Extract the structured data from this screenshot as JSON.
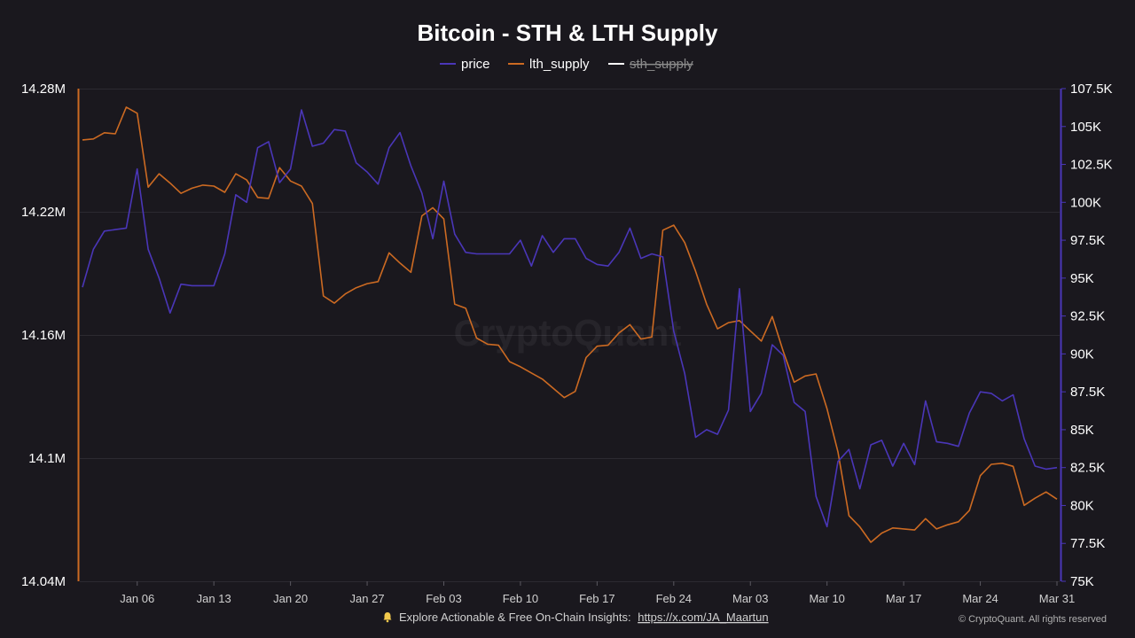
{
  "chart_data": {
    "type": "line",
    "title": "Bitcoin - STH & LTH Supply",
    "legend": [
      {
        "name": "price",
        "color": "#4a36b8",
        "visible": true
      },
      {
        "name": "lth_supply",
        "color": "#cc6a22",
        "visible": true
      },
      {
        "name": "sth_supply",
        "color": "#ffffff",
        "visible": false
      }
    ],
    "legend_position": "top-center",
    "grid": true,
    "x_range": [
      "2025-01-01",
      "2025-03-31"
    ],
    "x_ticks": [
      "Jan 06",
      "Jan 13",
      "Jan 20",
      "Jan 27",
      "Feb 03",
      "Feb 10",
      "Feb 17",
      "Feb 24",
      "Mar 03",
      "Mar 10",
      "Mar 17",
      "Mar 24",
      "Mar 31"
    ],
    "x_tick_dates": [
      "2025-01-06",
      "2025-01-13",
      "2025-01-20",
      "2025-01-27",
      "2025-02-03",
      "2025-02-10",
      "2025-02-17",
      "2025-02-24",
      "2025-03-03",
      "2025-03-10",
      "2025-03-17",
      "2025-03-24",
      "2025-03-31"
    ],
    "y_left": {
      "series": "lth_supply",
      "ylim": [
        14040000,
        14280000
      ],
      "ticks": [
        14040000,
        14100000,
        14160000,
        14220000,
        14280000
      ],
      "tick_labels": [
        "14.04M",
        "14.1M",
        "14.16M",
        "14.22M",
        "14.28M"
      ]
    },
    "y_right": {
      "series": "price",
      "ylim": [
        75000,
        107500
      ],
      "ticks": [
        75000,
        77500,
        80000,
        82500,
        85000,
        87500,
        90000,
        92500,
        95000,
        97500,
        100000,
        102500,
        105000,
        107500
      ],
      "tick_labels": [
        "75K",
        "77.5K",
        "80K",
        "82.5K",
        "85K",
        "87.5K",
        "90K",
        "92.5K",
        "95K",
        "97.5K",
        "100K",
        "102.5K",
        "105K",
        "107.5K"
      ]
    },
    "series": [
      {
        "name": "price",
        "axis": "right",
        "points": [
          [
            "2025-01-01",
            94400
          ],
          [
            "2025-01-02",
            96900
          ],
          [
            "2025-01-03",
            98100
          ],
          [
            "2025-01-04",
            98200
          ],
          [
            "2025-01-05",
            98300
          ],
          [
            "2025-01-06",
            102200
          ],
          [
            "2025-01-07",
            96900
          ],
          [
            "2025-01-08",
            95000
          ],
          [
            "2025-01-09",
            92700
          ],
          [
            "2025-01-10",
            94600
          ],
          [
            "2025-01-11",
            94500
          ],
          [
            "2025-01-12",
            94500
          ],
          [
            "2025-01-13",
            94500
          ],
          [
            "2025-01-14",
            96600
          ],
          [
            "2025-01-15",
            100500
          ],
          [
            "2025-01-16",
            100000
          ],
          [
            "2025-01-17",
            103600
          ],
          [
            "2025-01-18",
            104000
          ],
          [
            "2025-01-19",
            101300
          ],
          [
            "2025-01-20",
            102200
          ],
          [
            "2025-01-21",
            106100
          ],
          [
            "2025-01-22",
            103700
          ],
          [
            "2025-01-23",
            103900
          ],
          [
            "2025-01-24",
            104800
          ],
          [
            "2025-01-25",
            104700
          ],
          [
            "2025-01-26",
            102600
          ],
          [
            "2025-01-27",
            102000
          ],
          [
            "2025-01-28",
            101200
          ],
          [
            "2025-01-29",
            103600
          ],
          [
            "2025-01-30",
            104600
          ],
          [
            "2025-01-31",
            102400
          ],
          [
            "2025-02-01",
            100600
          ],
          [
            "2025-02-02",
            97600
          ],
          [
            "2025-02-03",
            101400
          ],
          [
            "2025-02-04",
            97900
          ],
          [
            "2025-02-05",
            96700
          ],
          [
            "2025-02-06",
            96600
          ],
          [
            "2025-02-07",
            96600
          ],
          [
            "2025-02-08",
            96600
          ],
          [
            "2025-02-09",
            96600
          ],
          [
            "2025-02-10",
            97500
          ],
          [
            "2025-02-11",
            95800
          ],
          [
            "2025-02-12",
            97800
          ],
          [
            "2025-02-13",
            96700
          ],
          [
            "2025-02-14",
            97600
          ],
          [
            "2025-02-15",
            97600
          ],
          [
            "2025-02-16",
            96300
          ],
          [
            "2025-02-17",
            95900
          ],
          [
            "2025-02-18",
            95800
          ],
          [
            "2025-02-19",
            96700
          ],
          [
            "2025-02-20",
            98300
          ],
          [
            "2025-02-21",
            96300
          ],
          [
            "2025-02-22",
            96600
          ],
          [
            "2025-02-23",
            96400
          ],
          [
            "2025-02-24",
            91500
          ],
          [
            "2025-02-25",
            88700
          ],
          [
            "2025-02-26",
            84500
          ],
          [
            "2025-02-27",
            85000
          ],
          [
            "2025-02-28",
            84700
          ],
          [
            "2025-03-01",
            86300
          ],
          [
            "2025-03-02",
            94300
          ],
          [
            "2025-03-03",
            86200
          ],
          [
            "2025-03-04",
            87400
          ],
          [
            "2025-03-05",
            90600
          ],
          [
            "2025-03-06",
            89900
          ],
          [
            "2025-03-07",
            86800
          ],
          [
            "2025-03-08",
            86200
          ],
          [
            "2025-03-09",
            80600
          ],
          [
            "2025-03-10",
            78600
          ],
          [
            "2025-03-11",
            82900
          ],
          [
            "2025-03-12",
            83700
          ],
          [
            "2025-03-13",
            81100
          ],
          [
            "2025-03-14",
            84000
          ],
          [
            "2025-03-15",
            84300
          ],
          [
            "2025-03-16",
            82600
          ],
          [
            "2025-03-17",
            84100
          ],
          [
            "2025-03-18",
            82700
          ],
          [
            "2025-03-19",
            86900
          ],
          [
            "2025-03-20",
            84200
          ],
          [
            "2025-03-21",
            84100
          ],
          [
            "2025-03-22",
            83900
          ],
          [
            "2025-03-23",
            86100
          ],
          [
            "2025-03-24",
            87500
          ],
          [
            "2025-03-25",
            87400
          ],
          [
            "2025-03-26",
            86900
          ],
          [
            "2025-03-27",
            87300
          ],
          [
            "2025-03-28",
            84400
          ],
          [
            "2025-03-29",
            82600
          ],
          [
            "2025-03-30",
            82400
          ],
          [
            "2025-03-31",
            82500
          ]
        ]
      },
      {
        "name": "lth_supply",
        "axis": "left",
        "points": [
          [
            "2025-01-01",
            14255000
          ],
          [
            "2025-01-02",
            14255500
          ],
          [
            "2025-01-03",
            14258500
          ],
          [
            "2025-01-04",
            14258000
          ],
          [
            "2025-01-05",
            14271000
          ],
          [
            "2025-01-06",
            14268000
          ],
          [
            "2025-01-07",
            14232000
          ],
          [
            "2025-01-08",
            14238500
          ],
          [
            "2025-01-09",
            14234000
          ],
          [
            "2025-01-10",
            14229000
          ],
          [
            "2025-01-11",
            14231500
          ],
          [
            "2025-01-12",
            14233000
          ],
          [
            "2025-01-13",
            14232500
          ],
          [
            "2025-01-14",
            14229500
          ],
          [
            "2025-01-15",
            14238500
          ],
          [
            "2025-01-16",
            14235500
          ],
          [
            "2025-01-17",
            14227000
          ],
          [
            "2025-01-18",
            14226500
          ],
          [
            "2025-01-19",
            14241500
          ],
          [
            "2025-01-20",
            14235000
          ],
          [
            "2025-01-21",
            14232500
          ],
          [
            "2025-01-22",
            14224000
          ],
          [
            "2025-01-23",
            14179000
          ],
          [
            "2025-01-24",
            14175500
          ],
          [
            "2025-01-25",
            14180000
          ],
          [
            "2025-01-26",
            14183000
          ],
          [
            "2025-01-27",
            14185000
          ],
          [
            "2025-01-28",
            14186000
          ],
          [
            "2025-01-29",
            14200000
          ],
          [
            "2025-01-30",
            14195000
          ],
          [
            "2025-01-31",
            14190500
          ],
          [
            "2025-02-01",
            14218000
          ],
          [
            "2025-02-02",
            14222000
          ],
          [
            "2025-02-03",
            14216500
          ],
          [
            "2025-02-04",
            14175000
          ],
          [
            "2025-02-05",
            14173000
          ],
          [
            "2025-02-06",
            14158500
          ],
          [
            "2025-02-07",
            14155500
          ],
          [
            "2025-02-08",
            14155000
          ],
          [
            "2025-02-09",
            14147000
          ],
          [
            "2025-02-10",
            14144500
          ],
          [
            "2025-02-11",
            14141500
          ],
          [
            "2025-02-12",
            14138500
          ],
          [
            "2025-02-13",
            14134000
          ],
          [
            "2025-02-14",
            14129500
          ],
          [
            "2025-02-15",
            14132500
          ],
          [
            "2025-02-16",
            14149000
          ],
          [
            "2025-02-17",
            14154500
          ],
          [
            "2025-02-18",
            14155000
          ],
          [
            "2025-02-19",
            14161000
          ],
          [
            "2025-02-20",
            14165000
          ],
          [
            "2025-02-21",
            14158000
          ],
          [
            "2025-02-22",
            14159000
          ],
          [
            "2025-02-23",
            14211000
          ],
          [
            "2025-02-24",
            14213500
          ],
          [
            "2025-02-25",
            14205000
          ],
          [
            "2025-02-26",
            14191000
          ],
          [
            "2025-02-27",
            14175000
          ],
          [
            "2025-02-28",
            14163000
          ],
          [
            "2025-03-01",
            14166000
          ],
          [
            "2025-03-02",
            14167000
          ],
          [
            "2025-03-03",
            14162000
          ],
          [
            "2025-03-04",
            14157000
          ],
          [
            "2025-03-05",
            14169000
          ],
          [
            "2025-03-06",
            14152000
          ],
          [
            "2025-03-07",
            14137000
          ],
          [
            "2025-03-08",
            14140000
          ],
          [
            "2025-03-09",
            14141000
          ],
          [
            "2025-03-10",
            14124000
          ],
          [
            "2025-03-11",
            14103000
          ],
          [
            "2025-03-12",
            14072000
          ],
          [
            "2025-03-13",
            14066500
          ],
          [
            "2025-03-14",
            14059000
          ],
          [
            "2025-03-15",
            14063500
          ],
          [
            "2025-03-16",
            14066000
          ],
          [
            "2025-03-17",
            14065500
          ],
          [
            "2025-03-18",
            14065000
          ],
          [
            "2025-03-19",
            14070500
          ],
          [
            "2025-03-20",
            14065500
          ],
          [
            "2025-03-21",
            14067500
          ],
          [
            "2025-03-22",
            14069000
          ],
          [
            "2025-03-23",
            14074500
          ],
          [
            "2025-03-24",
            14091500
          ],
          [
            "2025-03-25",
            14097000
          ],
          [
            "2025-03-26",
            14097500
          ],
          [
            "2025-03-27",
            14096000
          ],
          [
            "2025-03-28",
            14077000
          ],
          [
            "2025-03-29",
            14080500
          ],
          [
            "2025-03-30",
            14083500
          ],
          [
            "2025-03-31",
            14080000
          ]
        ]
      },
      {
        "name": "sth_supply",
        "axis": "left",
        "visible": false,
        "points": []
      }
    ]
  },
  "watermark": "CryptoQuant",
  "footer": {
    "bell_icon": "bell-icon",
    "text": "Explore Actionable & Free On-Chain Insights:",
    "link": "https://x.com/JA_Maartun",
    "copyright": "© CryptoQuant. All rights reserved"
  }
}
